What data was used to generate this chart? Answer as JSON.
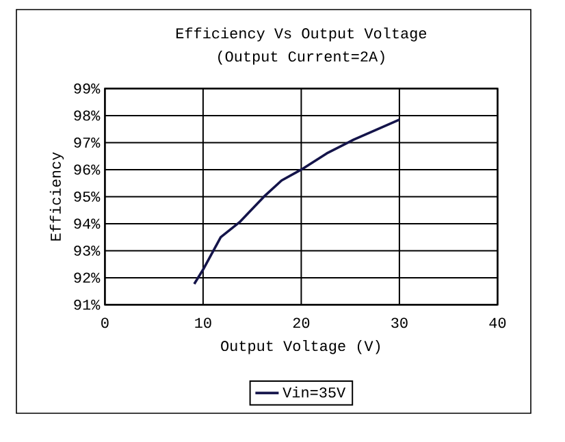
{
  "chart_data": {
    "type": "line",
    "title": "Efficiency Vs Output Voltage",
    "subtitle": "(Output Current=2A)",
    "xlabel": "Output Voltage (V)",
    "ylabel": "Efficiency",
    "xlim": [
      0,
      40
    ],
    "xticks": [
      0,
      10,
      20,
      30,
      40
    ],
    "ylim": [
      91,
      99
    ],
    "yticks": [
      {
        "value": 91,
        "label": "91%"
      },
      {
        "value": 92,
        "label": "92%"
      },
      {
        "value": 93,
        "label": "93%"
      },
      {
        "value": 94,
        "label": "94%"
      },
      {
        "value": 95,
        "label": "95%"
      },
      {
        "value": 96,
        "label": "96%"
      },
      {
        "value": 97,
        "label": "97%"
      },
      {
        "value": 98,
        "label": "98%"
      },
      {
        "value": 99,
        "label": "99%"
      }
    ],
    "grid": true,
    "legend": "bottom",
    "marker": "none",
    "line_style": "solid",
    "x": [
      9.1,
      10.0,
      11.8,
      13.7,
      16.2,
      18.0,
      20.0,
      22.6,
      25.3,
      30.0
    ],
    "series": [
      {
        "name": "Vin=35V",
        "color": "#14144a",
        "values": [
          91.77,
          92.3,
          93.5,
          94.05,
          95.0,
          95.6,
          96.0,
          96.6,
          97.1,
          97.85
        ]
      }
    ]
  }
}
